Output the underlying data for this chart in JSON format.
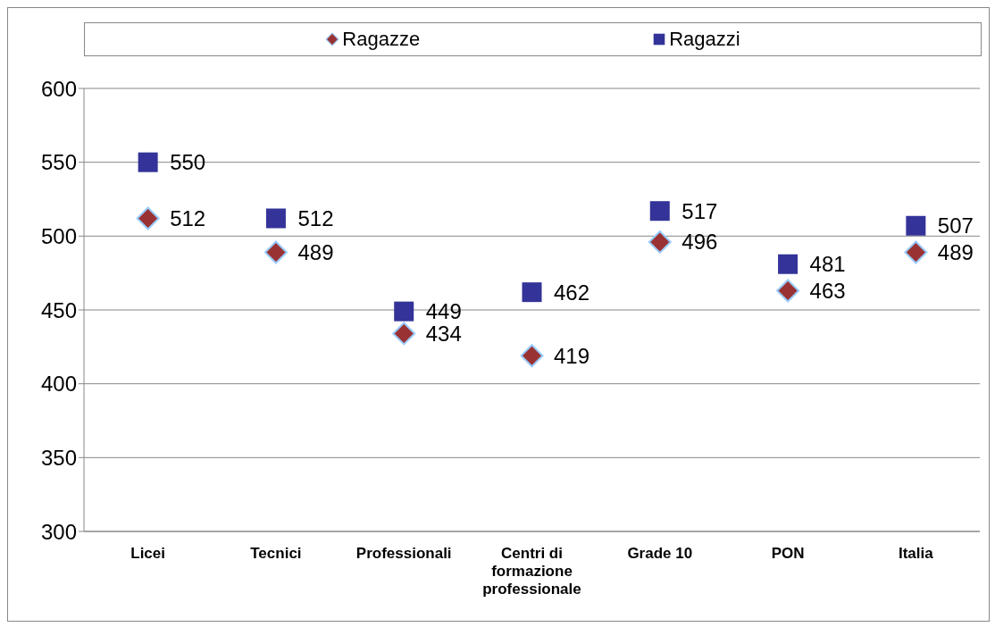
{
  "chart_data": {
    "type": "scatter",
    "categories": [
      "Licei",
      "Tecnici",
      "Professionali",
      "Centri di formazione professionale",
      "Grade 10",
      "PON",
      "Italia"
    ],
    "series": [
      {
        "name": "Ragazze",
        "color": "#993333",
        "marker": "diamond",
        "values": [
          512,
          489,
          434,
          419,
          496,
          463,
          489
        ]
      },
      {
        "name": "Ragazzi",
        "color": "#333399",
        "marker": "square",
        "values": [
          550,
          512,
          449,
          462,
          517,
          481,
          507
        ]
      }
    ],
    "ylim": [
      300,
      600
    ],
    "yticks": [
      300,
      350,
      400,
      450,
      500,
      550,
      600
    ],
    "grid": "y",
    "legend": "top",
    "data_labels": true
  }
}
